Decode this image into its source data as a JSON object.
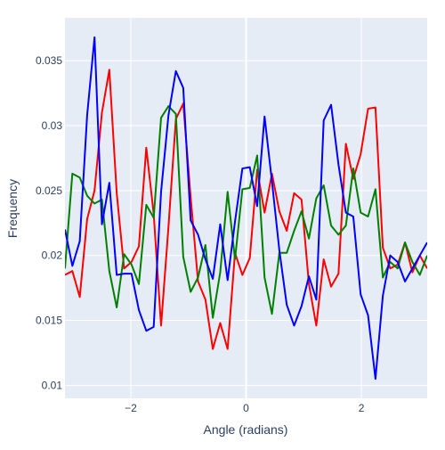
{
  "chart_data": {
    "type": "line",
    "title": "",
    "xlabel": "Angle (radians)",
    "ylabel": "Frequency",
    "xlim": [
      -3.14159,
      3.14159
    ],
    "ylim": [
      0.009,
      0.0383
    ],
    "xticks": [
      -2,
      0,
      2
    ],
    "xtick_labels": [
      "−2",
      "0",
      "2"
    ],
    "yticks": [
      0.01,
      0.015,
      0.02,
      0.025,
      0.03,
      0.035
    ],
    "ytick_labels": [
      "0.01",
      "0.015",
      "0.02",
      "0.025",
      "0.03",
      "0.035"
    ],
    "grid": true,
    "background": "#e5ecf6",
    "x": [
      -3.1416,
      -3.0134,
      -2.8851,
      -2.7569,
      -2.6287,
      -2.5004,
      -2.3722,
      -2.244,
      -2.1157,
      -1.9875,
      -1.8593,
      -1.731,
      -1.6028,
      -1.4746,
      -1.3464,
      -1.2181,
      -1.0899,
      -0.9617,
      -0.8334,
      -0.7052,
      -0.577,
      -0.4487,
      -0.3205,
      -0.1923,
      -0.0641,
      0.0641,
      0.1923,
      0.3205,
      0.4487,
      0.577,
      0.7052,
      0.8334,
      0.9617,
      1.0899,
      1.2181,
      1.3464,
      1.4746,
      1.6028,
      1.731,
      1.8593,
      1.9875,
      2.1157,
      2.244,
      2.3722,
      2.5004,
      2.6287,
      2.7569,
      2.8851,
      3.0134,
      3.1416
    ],
    "series": [
      {
        "color": "#ff0000",
        "values": [
          0.0185,
          0.0188,
          0.0168,
          0.0228,
          0.025,
          0.031,
          0.0343,
          0.0248,
          0.019,
          0.0195,
          0.0207,
          0.0283,
          0.0232,
          0.0146,
          0.0222,
          0.0305,
          0.0317,
          0.0245,
          0.018,
          0.0166,
          0.0128,
          0.0148,
          0.0128,
          0.0202,
          0.0185,
          0.0198,
          0.0266,
          0.0233,
          0.0263,
          0.0234,
          0.0219,
          0.0248,
          0.0243,
          0.0178,
          0.0146,
          0.0197,
          0.0176,
          0.0186,
          0.0286,
          0.0259,
          0.0278,
          0.0313,
          0.0314,
          0.0206,
          0.019,
          0.0193,
          0.021,
          0.0187,
          0.02,
          0.019
        ]
      },
      {
        "color": "#008000",
        "values": [
          0.019,
          0.0263,
          0.026,
          0.0246,
          0.024,
          0.0243,
          0.0188,
          0.016,
          0.0201,
          0.0193,
          0.0178,
          0.0239,
          0.0229,
          0.0306,
          0.0315,
          0.0309,
          0.0199,
          0.0172,
          0.0183,
          0.0208,
          0.0152,
          0.0187,
          0.0249,
          0.0197,
          0.0251,
          0.0252,
          0.0277,
          0.0183,
          0.0155,
          0.0202,
          0.0202,
          0.0219,
          0.0234,
          0.0213,
          0.0244,
          0.0254,
          0.0223,
          0.0216,
          0.0223,
          0.0267,
          0.0233,
          0.023,
          0.0251,
          0.0183,
          0.0195,
          0.019,
          0.021,
          0.0195,
          0.0185,
          0.02
        ]
      },
      {
        "color": "#0000ff",
        "values": [
          0.022,
          0.0192,
          0.0211,
          0.0308,
          0.0368,
          0.0224,
          0.0256,
          0.0185,
          0.0186,
          0.0186,
          0.0158,
          0.0142,
          0.0145,
          0.0249,
          0.0308,
          0.0342,
          0.0329,
          0.0227,
          0.0216,
          0.0197,
          0.0182,
          0.0224,
          0.0181,
          0.0226,
          0.0267,
          0.0268,
          0.0238,
          0.0307,
          0.0257,
          0.0204,
          0.0162,
          0.0146,
          0.0161,
          0.0184,
          0.0166,
          0.0304,
          0.0316,
          0.027,
          0.0233,
          0.023,
          0.017,
          0.0154,
          0.0105,
          0.0169,
          0.02,
          0.0195,
          0.018,
          0.019,
          0.02,
          0.021
        ]
      }
    ]
  }
}
